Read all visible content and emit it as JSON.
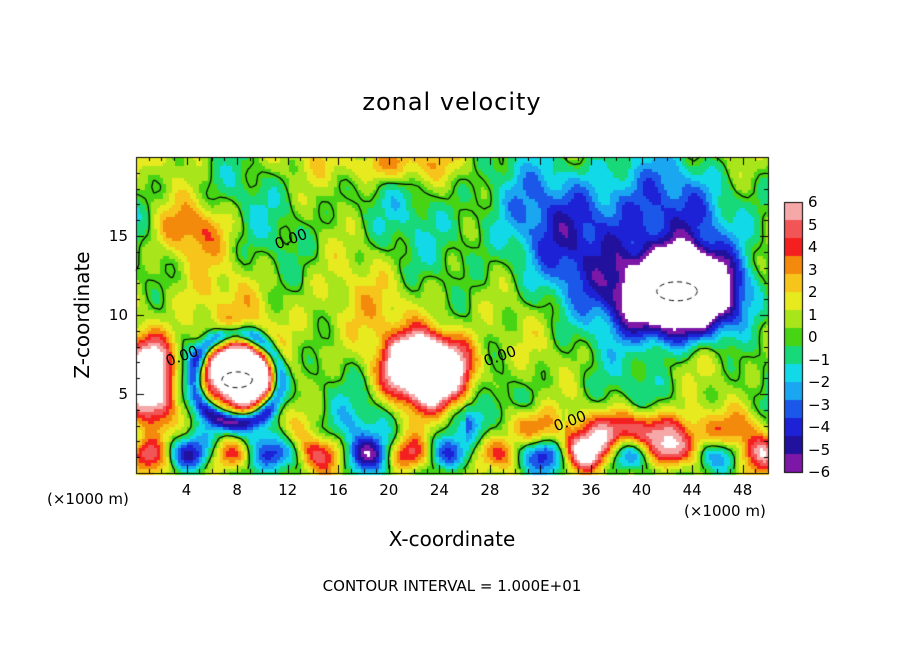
{
  "chart_data": {
    "type": "heatmap",
    "title": "zonal velocity",
    "xlabel": "X-coordinate",
    "ylabel": "Z-coordinate",
    "x_unit_label": "(×1000 m)",
    "y_unit_label": "(×1000 m)",
    "footer": "CONTOUR INTERVAL = 1.000E+01",
    "xlim": [
      0,
      50
    ],
    "ylim": [
      0,
      20
    ],
    "x_ticks": [
      4,
      8,
      12,
      16,
      20,
      24,
      28,
      32,
      36,
      40,
      44,
      48
    ],
    "y_ticks": [
      5,
      10,
      15
    ],
    "colorbar": {
      "levels": [
        6,
        5,
        4,
        3,
        2,
        1,
        0,
        -1,
        -2,
        -3,
        -4,
        -5,
        -6
      ],
      "colors": [
        "#f6a7a7",
        "#f25555",
        "#f42020",
        "#f48a0c",
        "#f6c41a",
        "#e6ea1e",
        "#a9e51b",
        "#46d415",
        "#17d97a",
        "#12d9e8",
        "#1aa6f0",
        "#1b58e9",
        "#1d22d6",
        "#22119d",
        "#7d17a8"
      ]
    },
    "contour_labels": [
      {
        "text": "0.00",
        "x": 12.3,
        "y": 14.8
      },
      {
        "text": "0.00",
        "x": 3.6,
        "y": 7.4
      },
      {
        "text": "0.00",
        "x": 28.8,
        "y": 7.4
      },
      {
        "text": "0.00",
        "x": 34.3,
        "y": 3.3
      }
    ],
    "features": [
      {
        "kind": "positive_core",
        "x": 8,
        "z": 6.0,
        "rx": 3.0,
        "rz": 2.3,
        "value": 8
      },
      {
        "kind": "positive_core",
        "x": 23.2,
        "z": 6.5,
        "rx": 3.8,
        "rz": 2.5,
        "value": 8
      },
      {
        "kind": "positive_core",
        "x": 1.2,
        "z": 5.8,
        "rx": 2.0,
        "rz": 3.0,
        "value": 7
      },
      {
        "kind": "positive_band",
        "x": 40,
        "z": 2.5,
        "rx": 8.0,
        "rz": 1.5,
        "value": 6
      },
      {
        "kind": "negative_core",
        "x": 43,
        "z": 11.2,
        "rx": 5.0,
        "rz": 3.0,
        "value": -9
      },
      {
        "kind": "negative_region",
        "x": 38,
        "z": 14,
        "rx": 9.0,
        "rz": 6.0,
        "value": -4.5
      },
      {
        "kind": "negative_ring",
        "x": 8,
        "z": 6.0,
        "rx": 4.0,
        "rz": 3.3,
        "value": -5
      },
      {
        "kind": "warm_patch",
        "x": 4.5,
        "z": 15.5,
        "rx": 3.0,
        "rz": 1.8,
        "value": 3.2
      },
      {
        "kind": "warm_patch",
        "x": 20,
        "z": 19.5,
        "rx": 4.0,
        "rz": 1.2,
        "value": 3.0
      }
    ]
  }
}
